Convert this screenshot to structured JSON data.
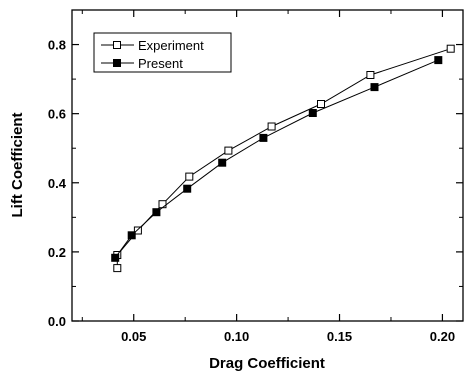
{
  "chart_data": {
    "type": "line",
    "title": "",
    "xlabel": "Drag Coefficient",
    "ylabel": "Lift Coefficient",
    "xlim": [
      0.02,
      0.21
    ],
    "ylim": [
      0.0,
      0.9
    ],
    "xticks": [
      0.05,
      0.1,
      0.15,
      0.2
    ],
    "xtick_labels": [
      "0.05",
      "0.10",
      "0.15",
      "0.20"
    ],
    "yticks": [
      0.0,
      0.2,
      0.4,
      0.6,
      0.8
    ],
    "ytick_labels": [
      "0.0",
      "0.2",
      "0.4",
      "0.6",
      "0.8"
    ],
    "grid": false,
    "legend_position": "top-left",
    "series": [
      {
        "name": "Experiment",
        "marker": "open-square",
        "color": "#000000",
        "x": [
          0.042,
          0.042,
          0.052,
          0.064,
          0.077,
          0.096,
          0.117,
          0.141,
          0.165,
          0.204
        ],
        "y": [
          0.153,
          0.191,
          0.262,
          0.338,
          0.418,
          0.493,
          0.563,
          0.628,
          0.712,
          0.788
        ]
      },
      {
        "name": "Present",
        "marker": "filled-square",
        "color": "#000000",
        "x": [
          0.041,
          0.049,
          0.061,
          0.076,
          0.093,
          0.113,
          0.137,
          0.167,
          0.198
        ],
        "y": [
          0.183,
          0.248,
          0.315,
          0.383,
          0.458,
          0.53,
          0.602,
          0.677,
          0.755
        ]
      }
    ]
  }
}
